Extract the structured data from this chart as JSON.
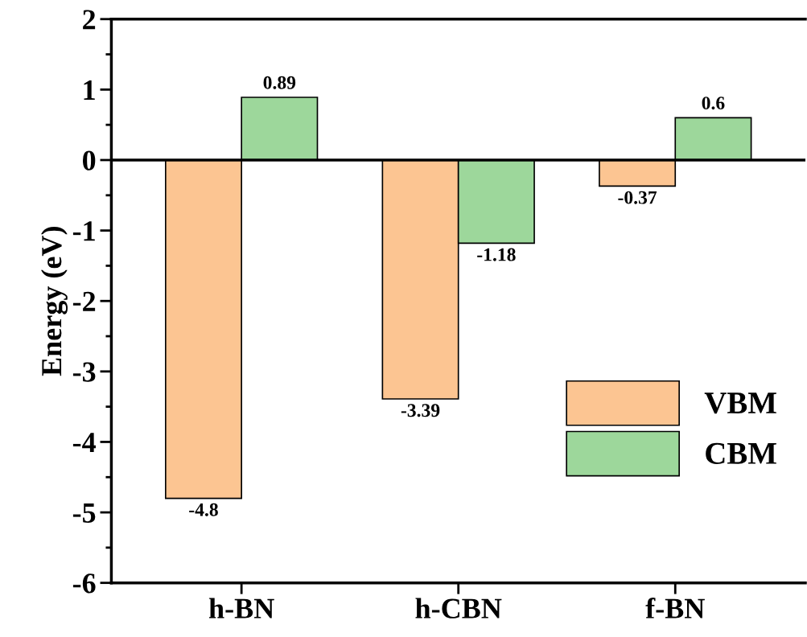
{
  "chart_data": {
    "type": "bar",
    "ylabel": "Energy (eV)",
    "categories": [
      "h-BN",
      "h-CBN",
      "f-BN"
    ],
    "series": [
      {
        "name": "VBM",
        "color": "#fcc592",
        "values": [
          -4.8,
          -3.39,
          -0.37
        ]
      },
      {
        "name": "CBM",
        "color": "#9dd79b",
        "values": [
          0.89,
          -1.18,
          0.6
        ]
      }
    ],
    "ylim": [
      -6,
      2
    ],
    "yticks": [
      -6,
      -5,
      -4,
      -3,
      -2,
      -1,
      0,
      1,
      2
    ],
    "ref_lines": [
      {
        "axis": "y",
        "value": 0,
        "label": null,
        "color": "#000000",
        "line_style": "solid"
      }
    ],
    "data_labels": true,
    "legend": "bottom right",
    "grid": false
  }
}
